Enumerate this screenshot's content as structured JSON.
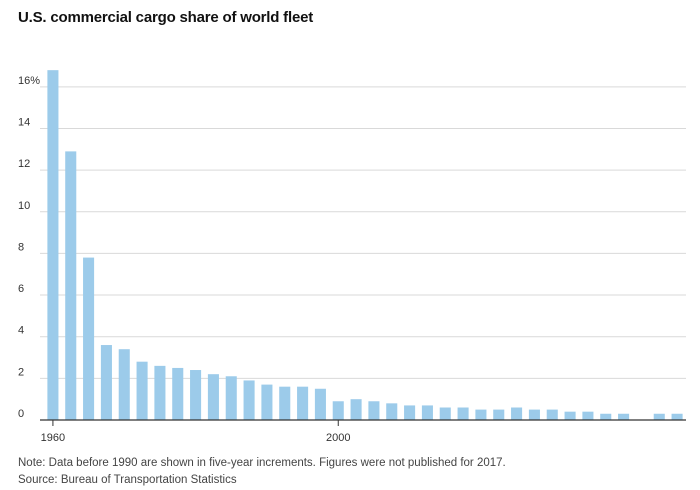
{
  "title": "U.S. commercial cargo share of world fleet",
  "notes": {
    "note": "Note: Data before 1990 are shown in five-year increments. Figures were not published for 2017.",
    "source": "Source: Bureau of Transportation Statistics"
  },
  "colors": {
    "bar": "#9ccbea",
    "grid": "#d9d9d9",
    "axis": "#333333"
  },
  "chart_data": {
    "type": "bar",
    "title": "U.S. commercial cargo share of world fleet",
    "xlabel": "",
    "ylabel": "",
    "ylim": [
      0,
      17
    ],
    "y_ticks": [
      0,
      2,
      4,
      6,
      8,
      10,
      12,
      14,
      16
    ],
    "y_tick_labels": [
      "0",
      "2",
      "4",
      "6",
      "8",
      "10",
      "12",
      "14",
      "16%"
    ],
    "x_tick_labels": [
      {
        "at": "1960",
        "label": "1960"
      },
      {
        "at": "2000",
        "label": "2000"
      }
    ],
    "grid": true,
    "categories": [
      "1960",
      "1965",
      "1970",
      "1975",
      "1980",
      "1985",
      "1990",
      "1991",
      "1992",
      "1993",
      "1994",
      "1995",
      "1996",
      "1997",
      "1998",
      "1999",
      "2000",
      "2001",
      "2002",
      "2003",
      "2004",
      "2005",
      "2006",
      "2007",
      "2008",
      "2009",
      "2010",
      "2011",
      "2012",
      "2013",
      "2014",
      "2015",
      "2016",
      "2017",
      "2018",
      "2019"
    ],
    "values": [
      16.8,
      12.9,
      7.8,
      3.6,
      3.4,
      2.8,
      2.6,
      2.5,
      2.4,
      2.2,
      2.1,
      1.9,
      1.7,
      1.6,
      1.6,
      1.5,
      0.9,
      1.0,
      0.9,
      0.8,
      0.7,
      0.7,
      0.6,
      0.6,
      0.5,
      0.5,
      0.6,
      0.5,
      0.5,
      0.4,
      0.4,
      0.3,
      0.3,
      null,
      0.3,
      0.3
    ]
  }
}
